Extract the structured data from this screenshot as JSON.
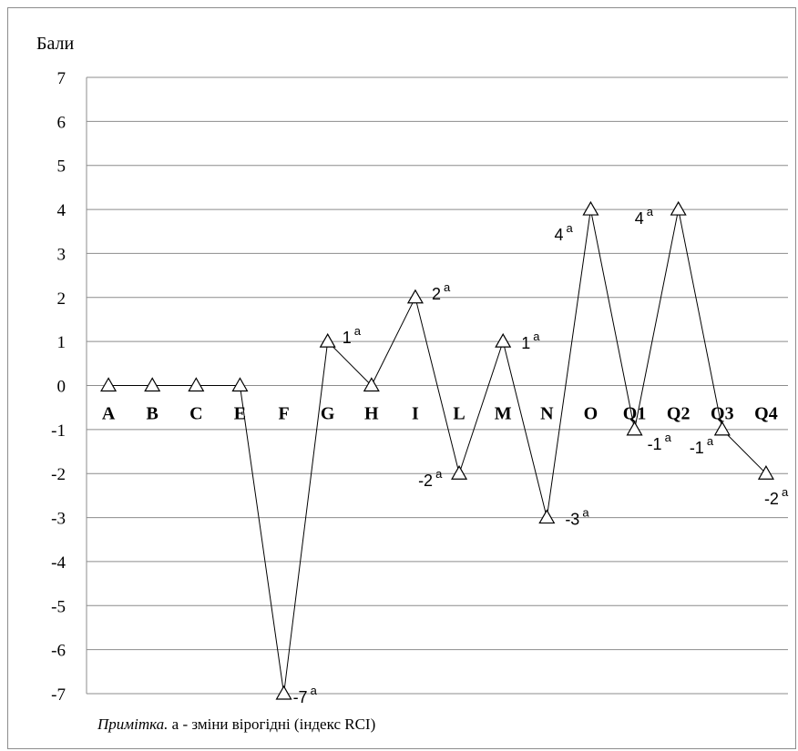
{
  "chart_data": {
    "type": "line",
    "ylabel": "Бали",
    "ylim": [
      -7,
      7
    ],
    "yticks": [
      7,
      6,
      5,
      4,
      3,
      2,
      1,
      0,
      -1,
      -2,
      -3,
      -4,
      -5,
      -6,
      -7
    ],
    "grid": true,
    "marker": "triangle",
    "categories": [
      "A",
      "B",
      "C",
      "E",
      "F",
      "G",
      "H",
      "I",
      "L",
      "M",
      "N",
      "O",
      "Q1",
      "Q2",
      "Q3",
      "Q4"
    ],
    "values": [
      0,
      0,
      0,
      0,
      -7,
      1,
      0,
      2,
      -2,
      1,
      -3,
      4,
      -1,
      4,
      -1,
      -2
    ],
    "annotations": [
      {
        "category": "F",
        "text": "-7",
        "sup": "a"
      },
      {
        "category": "G",
        "text": "1",
        "sup": "a"
      },
      {
        "category": "I",
        "text": "2",
        "sup": "a"
      },
      {
        "category": "L",
        "text": "-2",
        "sup": "a"
      },
      {
        "category": "M",
        "text": "1",
        "sup": "a"
      },
      {
        "category": "N",
        "text": "-3",
        "sup": "a"
      },
      {
        "category": "O",
        "text": "4",
        "sup": "a"
      },
      {
        "category": "Q1",
        "text": "-1",
        "sup": "a"
      },
      {
        "category": "Q2",
        "text": "4",
        "sup": "a"
      },
      {
        "category": "Q3",
        "text": "-1",
        "sup": "a"
      },
      {
        "category": "Q4",
        "text": "-2",
        "sup": "a"
      }
    ]
  },
  "note": {
    "italic": "Примітка.",
    "text": " а - зміни вірогідні  (індекс RCI)"
  }
}
